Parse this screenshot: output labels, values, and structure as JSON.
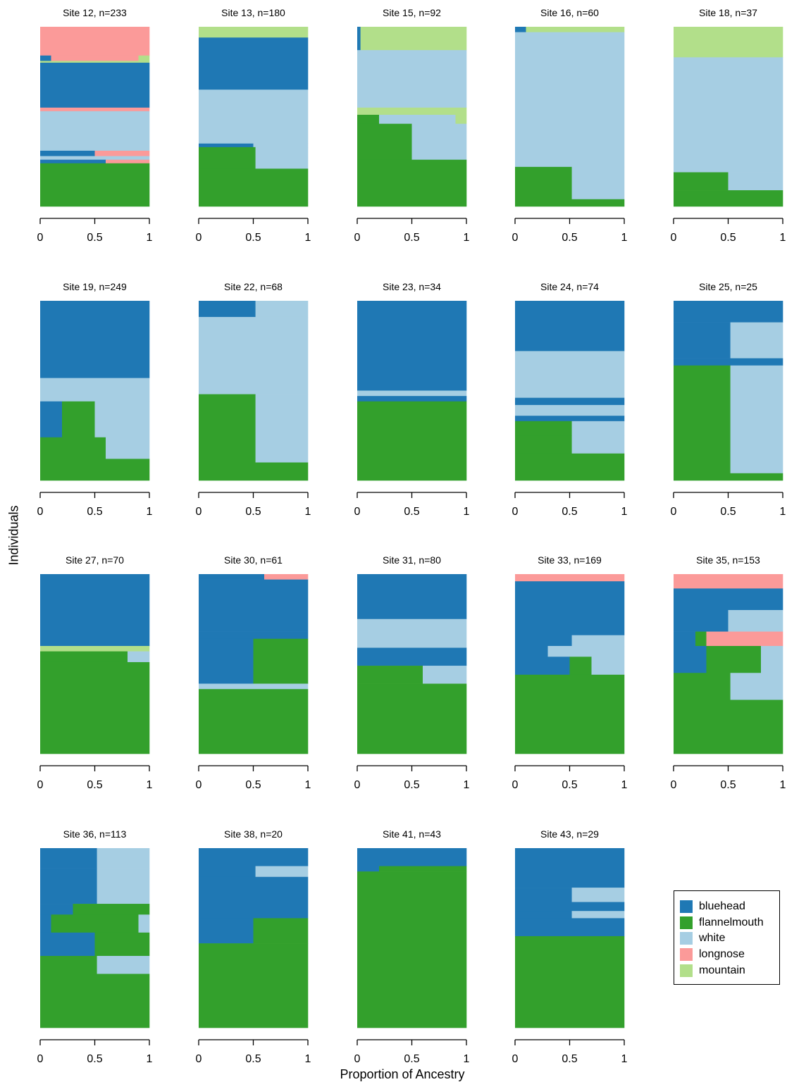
{
  "colors": {
    "bluehead": "#1f78b4",
    "flannelmouth": "#33a02c",
    "white": "#a6cee3",
    "longnose": "#fb9a99",
    "mountain": "#b2df8a",
    "orange": "#fdbf6f"
  },
  "chart_data": {
    "type": "stacked-bar",
    "orientation": "horizontal",
    "xlabel": "Proportion of Ancestry",
    "ylabel": "Individuals",
    "xlim": [
      0,
      1
    ],
    "xticks": [
      "0",
      "0.5",
      "1"
    ],
    "legend": {
      "position": "bottom-right",
      "entries": [
        "bluehead",
        "flannelmouth",
        "white",
        "longnose",
        "mountain"
      ]
    },
    "note": "Each panel lists ancestry blocks top-to-bottom: [fraction of individuals, bluehead, flannelmouth, white, longnose, mountain] proportions.",
    "panels": [
      {
        "title": "Site 12, n=233",
        "blocks": [
          [
            0.16,
            0,
            0,
            0,
            1,
            0
          ],
          [
            0.03,
            0.1,
            0,
            0,
            0.8,
            0.1
          ],
          [
            0.01,
            0,
            0,
            0,
            0,
            1
          ],
          [
            0.25,
            1,
            0,
            0,
            0,
            0
          ],
          [
            0.02,
            0,
            0,
            0,
            1,
            0
          ],
          [
            0.22,
            0,
            0,
            1,
            0,
            0
          ],
          [
            0.03,
            0.5,
            0,
            0,
            0.5,
            0
          ],
          [
            0.02,
            0,
            0,
            1,
            0,
            0
          ],
          [
            0.02,
            0.6,
            0,
            0,
            0.4,
            0
          ],
          [
            0.24,
            0,
            1,
            0,
            0,
            0
          ]
        ]
      },
      {
        "title": "Site 13, n=180",
        "blocks": [
          [
            0.06,
            0,
            0,
            0,
            0,
            1
          ],
          [
            0.29,
            1,
            0,
            0,
            0,
            0
          ],
          [
            0.3,
            0,
            0,
            1,
            0,
            0
          ],
          [
            0.02,
            0.5,
            0,
            0.5,
            0,
            0
          ],
          [
            0.12,
            0,
            0.52,
            0.48,
            0,
            0
          ],
          [
            0.21,
            0,
            1,
            0,
            0,
            0
          ]
        ]
      },
      {
        "title": "Site 15, n=92",
        "blocks": [
          [
            0.13,
            0.03,
            0,
            0,
            0,
            0.97
          ],
          [
            0.32,
            0,
            0,
            1,
            0,
            0
          ],
          [
            0.04,
            0,
            0,
            0,
            0,
            1
          ],
          [
            0.05,
            0,
            0.2,
            0.7,
            0,
            0.1
          ],
          [
            0.2,
            0,
            0.5,
            0.5,
            0,
            0
          ],
          [
            0.26,
            0,
            1,
            0,
            0,
            0
          ]
        ]
      },
      {
        "title": "Site 16, n=60",
        "blocks": [
          [
            0.03,
            0.1,
            0,
            0,
            0,
            0.9
          ],
          [
            0.75,
            0,
            0,
            1,
            0,
            0
          ],
          [
            0.18,
            0,
            0.52,
            0.48,
            0,
            0
          ],
          [
            0.04,
            0,
            1,
            0,
            0,
            0
          ]
        ]
      },
      {
        "title": "Site 18, n=37",
        "blocks": [
          [
            0.17,
            0,
            0,
            0,
            0,
            1
          ],
          [
            0.64,
            0,
            0,
            1,
            0,
            0
          ],
          [
            0.1,
            0,
            0.5,
            0.5,
            0,
            0
          ],
          [
            0.09,
            0,
            1,
            0,
            0,
            0
          ]
        ]
      },
      {
        "title": "Site 19, n=249",
        "blocks": [
          [
            0.43,
            1,
            0,
            0,
            0,
            0
          ],
          [
            0.13,
            0,
            0,
            1,
            0,
            0
          ],
          [
            0.2,
            0.2,
            0.3,
            0.5,
            0,
            0
          ],
          [
            0.12,
            0,
            0.6,
            0.4,
            0,
            0
          ],
          [
            0.12,
            0,
            1,
            0,
            0,
            0
          ]
        ]
      },
      {
        "title": "Site 22, n=68",
        "blocks": [
          [
            0.09,
            0.52,
            0,
            0.48,
            0,
            0
          ],
          [
            0.43,
            0,
            0,
            1,
            0,
            0
          ],
          [
            0.38,
            0,
            0.52,
            0.48,
            0,
            0
          ],
          [
            0.1,
            0,
            1,
            0,
            0,
            0
          ]
        ]
      },
      {
        "title": "Site 23, n=34",
        "blocks": [
          [
            0.5,
            1,
            0,
            0,
            0,
            0
          ],
          [
            0.03,
            0,
            0,
            1,
            0,
            0
          ],
          [
            0.03,
            1,
            0,
            0,
            0,
            0
          ],
          [
            0.44,
            0,
            1,
            0,
            0,
            0
          ]
        ]
      },
      {
        "title": "Site 24, n=74",
        "blocks": [
          [
            0.28,
            1,
            0,
            0,
            0,
            0
          ],
          [
            0.26,
            0,
            0,
            1,
            0,
            0
          ],
          [
            0.04,
            1,
            0,
            0,
            0,
            0
          ],
          [
            0.06,
            0,
            0,
            1,
            0,
            0
          ],
          [
            0.03,
            1,
            0,
            0,
            0,
            0
          ],
          [
            0.08,
            0,
            0.52,
            0.48,
            0,
            0
          ],
          [
            0.1,
            0,
            0.52,
            0.48,
            0,
            0
          ],
          [
            0.15,
            0,
            1,
            0,
            0,
            0
          ]
        ]
      },
      {
        "title": "Site 25, n=25",
        "blocks": [
          [
            0.12,
            1,
            0,
            0,
            0,
            0
          ],
          [
            0.2,
            0.52,
            0,
            0.48,
            0,
            0
          ],
          [
            0.04,
            1,
            0,
            0,
            0,
            0
          ],
          [
            0.6,
            0,
            0.52,
            0.48,
            0,
            0
          ],
          [
            0.04,
            0,
            1,
            0,
            0,
            0
          ]
        ]
      },
      {
        "title": "Site 27, n=70",
        "blocks": [
          [
            0.4,
            1,
            0,
            0,
            0,
            0
          ],
          [
            0.03,
            0,
            0,
            0,
            0,
            1
          ],
          [
            0.06,
            0,
            0.8,
            0.2,
            0,
            0
          ],
          [
            0.51,
            0,
            1,
            0,
            0,
            0
          ]
        ]
      },
      {
        "title": "Site 30, n=61",
        "blocks": [
          [
            0.03,
            0.6,
            0,
            0,
            0.4,
            0
          ],
          [
            0.29,
            1,
            0,
            0,
            0,
            0
          ],
          [
            0.04,
            1,
            0,
            0,
            0,
            0
          ],
          [
            0.25,
            0.5,
            0.5,
            0,
            0,
            0
          ],
          [
            0.03,
            0,
            0,
            1,
            0,
            0
          ],
          [
            0.36,
            0,
            1,
            0,
            0,
            0
          ]
        ]
      },
      {
        "title": "Site 31, n=80",
        "blocks": [
          [
            0.25,
            1,
            0,
            0,
            0,
            0
          ],
          [
            0.16,
            0,
            0,
            1,
            0,
            0
          ],
          [
            0.1,
            1,
            0,
            0,
            0,
            0
          ],
          [
            0.1,
            0,
            0.6,
            0.4,
            0,
            0
          ],
          [
            0.39,
            0,
            1,
            0,
            0,
            0
          ]
        ]
      },
      {
        "title": "Site 33, n=169",
        "blocks": [
          [
            0.04,
            0,
            0,
            0,
            1,
            0
          ],
          [
            0.3,
            1,
            0,
            0,
            0,
            0
          ],
          [
            0.06,
            0.52,
            0,
            0.48,
            0,
            0
          ],
          [
            0.06,
            0.3,
            0,
            0.7,
            0,
            0
          ],
          [
            0.1,
            0.5,
            0.2,
            0.3,
            0,
            0
          ],
          [
            0.44,
            0,
            1,
            0,
            0,
            0
          ]
        ]
      },
      {
        "title": "Site 35, n=153",
        "blocks": [
          [
            0.08,
            0,
            0,
            0,
            1,
            0
          ],
          [
            0.12,
            1,
            0,
            0,
            0,
            0
          ],
          [
            0.12,
            0.5,
            0,
            0.5,
            0,
            0
          ],
          [
            0.08,
            0.2,
            0.1,
            0,
            0.7,
            0
          ],
          [
            0.15,
            0.3,
            0.5,
            0.2,
            0,
            0
          ],
          [
            0.15,
            0,
            0.52,
            0.48,
            0,
            0
          ],
          [
            0.3,
            0,
            1,
            0,
            0,
            0
          ]
        ]
      },
      {
        "title": "Site 36, n=113",
        "blocks": [
          [
            0.11,
            0.52,
            0,
            0.48,
            0,
            0
          ],
          [
            0.2,
            0.52,
            0,
            0.48,
            0,
            0
          ],
          [
            0.06,
            0.3,
            0.7,
            0,
            0,
            0
          ],
          [
            0.1,
            0.1,
            0.8,
            0.1,
            0,
            0
          ],
          [
            0.13,
            0.5,
            0.5,
            0,
            0,
            0
          ],
          [
            0.1,
            0,
            0.52,
            0.48,
            0,
            0
          ],
          [
            0.3,
            0,
            1,
            0,
            0,
            0
          ]
        ]
      },
      {
        "title": "Site 38, n=20",
        "blocks": [
          [
            0.1,
            1,
            0,
            0,
            0,
            0
          ],
          [
            0.06,
            0.52,
            0,
            0.48,
            0,
            0
          ],
          [
            0.23,
            1,
            0,
            0,
            0,
            0
          ],
          [
            0.14,
            0.5,
            0.5,
            0,
            0,
            0
          ],
          [
            0.47,
            0,
            1,
            0,
            0,
            0
          ]
        ]
      },
      {
        "title": "Site 41, n=43",
        "blocks": [
          [
            0.1,
            1,
            0,
            0,
            0,
            0
          ],
          [
            0.03,
            0.2,
            0.8,
            0,
            0,
            0
          ],
          [
            0.87,
            0,
            1,
            0,
            0,
            0
          ]
        ]
      },
      {
        "title": "Site 43, n=29",
        "blocks": [
          [
            0.22,
            1,
            0,
            0,
            0,
            0
          ],
          [
            0.08,
            0.52,
            0,
            0.48,
            0,
            0
          ],
          [
            0.05,
            1,
            0,
            0,
            0,
            0
          ],
          [
            0.04,
            0.52,
            0,
            0.48,
            0,
            0
          ],
          [
            0.1,
            1,
            0,
            0,
            0,
            0
          ],
          [
            0.51,
            0,
            1,
            0,
            0,
            0
          ]
        ]
      }
    ]
  }
}
